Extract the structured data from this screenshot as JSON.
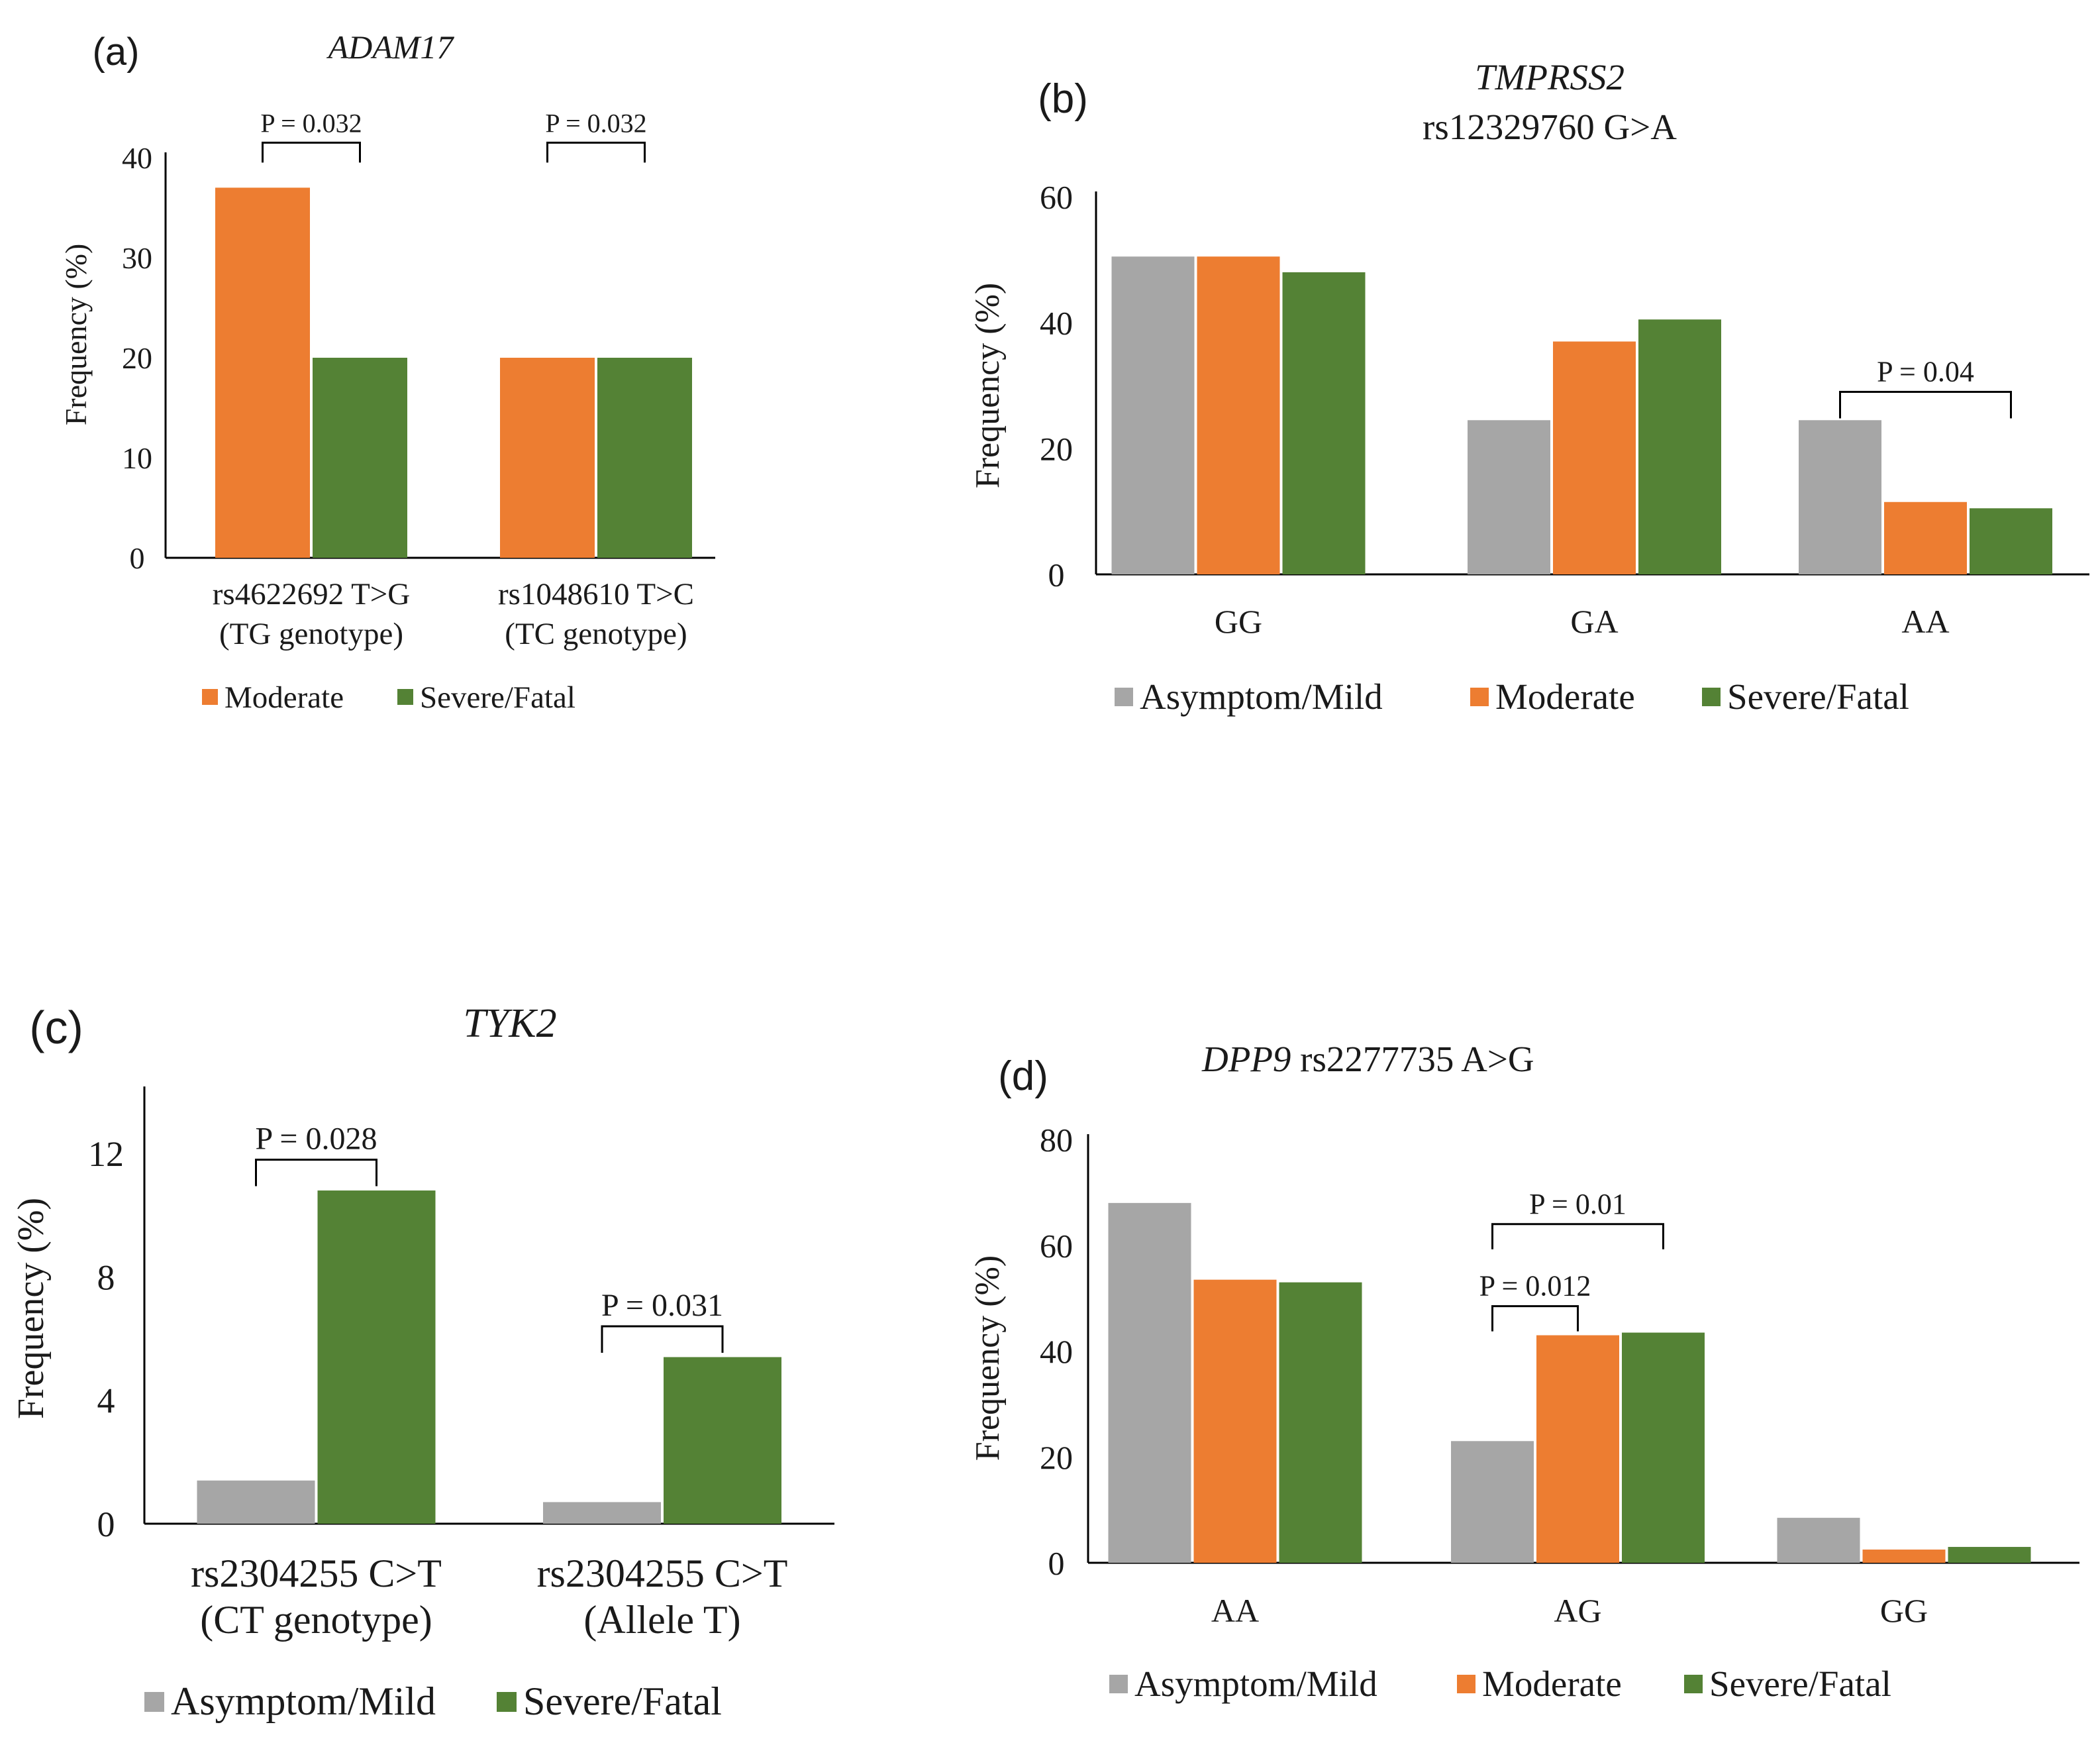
{
  "colors": {
    "Asymptom/Mild": "#a6a6a6",
    "Moderate": "#ed7d31",
    "Severe/Fatal": "#548235",
    "axis": "#000000"
  },
  "chart_data": [
    {
      "type": "bar",
      "panel": "(a)",
      "title": "ADAM17",
      "title_parts": [
        {
          "text": "ADAM17",
          "italic": true
        }
      ],
      "ylabel": "Frequency (%)",
      "ylim": [
        0,
        40
      ],
      "yticks": [
        0,
        10,
        20,
        30,
        40
      ],
      "categories": [
        [
          "rs4622692 T>G",
          "(TG genotype)"
        ],
        [
          "rs1048610 T>C",
          "(TC genotype)"
        ]
      ],
      "series": [
        {
          "name": "Moderate",
          "values": [
            37,
            20
          ]
        },
        {
          "name": "Severe/Fatal",
          "values": [
            20,
            20
          ]
        }
      ],
      "annotations": [
        {
          "text": "P = 0.032",
          "category": 0,
          "from": "Moderate",
          "to": "Severe/Fatal",
          "level": 41.5
        },
        {
          "text": "P = 0.032",
          "category": 1,
          "from": "Moderate",
          "to": "Severe/Fatal",
          "level": 41.5
        }
      ],
      "legend": [
        "Moderate",
        "Severe/Fatal"
      ]
    },
    {
      "type": "bar",
      "panel": "(b)",
      "title": "TMPRSS2 rs12329760 G>A",
      "title_parts": [
        {
          "text": "TMPRSS2",
          "italic": true
        },
        {
          "text": "rs12329760 G>A",
          "italic": false
        }
      ],
      "ylabel": "Frequency (%)",
      "ylim": [
        0,
        60
      ],
      "yticks": [
        0,
        20,
        40,
        60
      ],
      "categories": [
        [
          "GG"
        ],
        [
          "GA"
        ],
        [
          "AA"
        ]
      ],
      "series": [
        {
          "name": "Asymptom/Mild",
          "values": [
            50.5,
            24.5,
            24.5
          ]
        },
        {
          "name": "Moderate",
          "values": [
            50.5,
            37,
            11.5
          ]
        },
        {
          "name": "Severe/Fatal",
          "values": [
            48,
            40.5,
            10.5
          ]
        }
      ],
      "annotations": [
        {
          "text": "P = 0.04",
          "category": 2,
          "from": "Asymptom/Mild",
          "to": "Severe/Fatal",
          "level": 29
        }
      ],
      "legend": [
        "Asymptom/Mild",
        "Moderate",
        "Severe/Fatal"
      ]
    },
    {
      "type": "bar",
      "panel": "(c)",
      "title": "TYK2",
      "title_parts": [
        {
          "text": "TYK2",
          "italic": true
        }
      ],
      "ylabel": "Frequency (%)",
      "ylim": [
        0,
        14
      ],
      "yticks": [
        0,
        4,
        8,
        12
      ],
      "categories": [
        [
          "rs2304255 C>T",
          "(CT genotype)"
        ],
        [
          "rs2304255 C>T",
          "(Allele T)"
        ]
      ],
      "series": [
        {
          "name": "Asymptom/Mild",
          "values": [
            1.4,
            0.7
          ]
        },
        {
          "name": "Severe/Fatal",
          "values": [
            10.8,
            5.4
          ]
        }
      ],
      "annotations": [
        {
          "text": "P = 0.028",
          "category": 0,
          "from": "Asymptom/Mild",
          "to": "Severe/Fatal",
          "level": 11.8
        },
        {
          "text": "P = 0.031",
          "category": 1,
          "from": "Asymptom/Mild",
          "to": "Severe/Fatal",
          "level": 6.4
        }
      ],
      "legend": [
        "Asymptom/Mild",
        "Severe/Fatal"
      ]
    },
    {
      "type": "bar",
      "panel": "(d)",
      "title": "DPP9 rs2277735 A>G",
      "title_parts": [
        {
          "text": "DPP9",
          "italic": true
        },
        {
          "text": "rs2277735 A>G",
          "italic": false
        }
      ],
      "ylabel": "Frequency (%)",
      "ylim": [
        0,
        80
      ],
      "yticks": [
        0,
        20,
        40,
        60,
        80
      ],
      "categories": [
        [
          "AA"
        ],
        [
          "AG"
        ],
        [
          "GG"
        ]
      ],
      "series": [
        {
          "name": "Asymptom/Mild",
          "values": [
            68,
            23,
            8.5
          ]
        },
        {
          "name": "Moderate",
          "values": [
            53.5,
            43,
            2.5
          ]
        },
        {
          "name": "Severe/Fatal",
          "values": [
            53,
            43.5,
            3
          ]
        }
      ],
      "annotations": [
        {
          "text": "P = 0.01",
          "category": 1,
          "from": "Asymptom/Mild",
          "to": "Severe/Fatal",
          "level": 64
        },
        {
          "text": "P = 0.012",
          "category": 1,
          "from": "Asymptom/Mild",
          "to": "Moderate",
          "level": 48.5
        }
      ],
      "legend": [
        "Asymptom/Mild",
        "Moderate",
        "Severe/Fatal"
      ]
    }
  ]
}
